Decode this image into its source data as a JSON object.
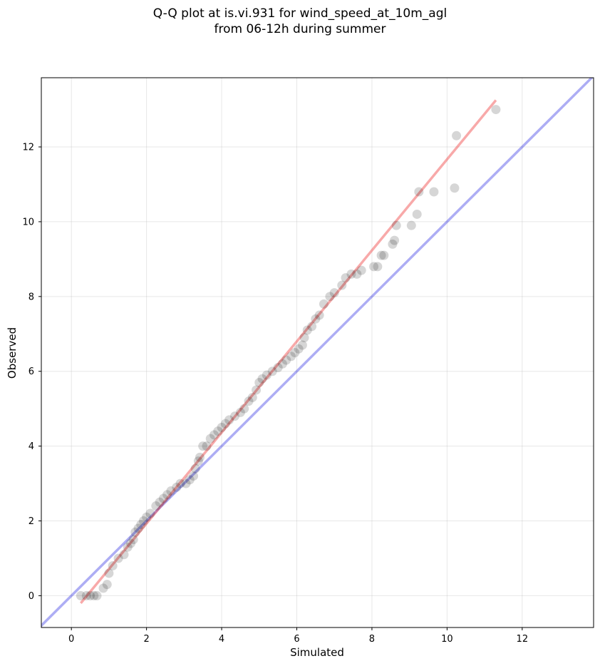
{
  "chart_data": {
    "type": "scatter",
    "title": "Q-Q plot at is.vi.931 for wind_speed_at_10m_agl",
    "subtitle": "from 06-12h during summer",
    "xlabel": "Simulated",
    "ylabel": "Observed",
    "xlim": [
      -0.8,
      13.9
    ],
    "ylim": [
      -0.85,
      13.85
    ],
    "xticks": [
      "0",
      "2",
      "4",
      "6",
      "8",
      "10",
      "12"
    ],
    "yticks": [
      "0",
      "2",
      "4",
      "6",
      "8",
      "10",
      "12"
    ],
    "grid": true,
    "reference_line": {
      "slope": 1,
      "intercept": 0,
      "color": "#0000dd"
    },
    "fit_line": {
      "x": [
        0.25,
        11.3
      ],
      "y": [
        -0.2,
        13.25
      ],
      "color": "#ee3333"
    },
    "point_color": "#000000",
    "points": [
      {
        "x": 0.25,
        "y": 0.0
      },
      {
        "x": 0.4,
        "y": 0.0
      },
      {
        "x": 0.5,
        "y": 0.0
      },
      {
        "x": 0.6,
        "y": 0.0
      },
      {
        "x": 0.68,
        "y": 0.0
      },
      {
        "x": 0.85,
        "y": 0.2
      },
      {
        "x": 0.95,
        "y": 0.3
      },
      {
        "x": 1.0,
        "y": 0.6
      },
      {
        "x": 1.1,
        "y": 0.8
      },
      {
        "x": 1.25,
        "y": 1.0
      },
      {
        "x": 1.4,
        "y": 1.1
      },
      {
        "x": 1.5,
        "y": 1.3
      },
      {
        "x": 1.58,
        "y": 1.4
      },
      {
        "x": 1.65,
        "y": 1.5
      },
      {
        "x": 1.7,
        "y": 1.7
      },
      {
        "x": 1.78,
        "y": 1.8
      },
      {
        "x": 1.85,
        "y": 1.9
      },
      {
        "x": 1.92,
        "y": 2.0
      },
      {
        "x": 2.0,
        "y": 2.1
      },
      {
        "x": 2.1,
        "y": 2.2
      },
      {
        "x": 2.25,
        "y": 2.4
      },
      {
        "x": 2.35,
        "y": 2.5
      },
      {
        "x": 2.45,
        "y": 2.6
      },
      {
        "x": 2.55,
        "y": 2.7
      },
      {
        "x": 2.65,
        "y": 2.8
      },
      {
        "x": 2.8,
        "y": 2.9
      },
      {
        "x": 2.9,
        "y": 3.0
      },
      {
        "x": 3.05,
        "y": 3.0
      },
      {
        "x": 3.15,
        "y": 3.1
      },
      {
        "x": 3.25,
        "y": 3.2
      },
      {
        "x": 3.3,
        "y": 3.4
      },
      {
        "x": 3.38,
        "y": 3.6
      },
      {
        "x": 3.42,
        "y": 3.7
      },
      {
        "x": 3.5,
        "y": 4.0
      },
      {
        "x": 3.6,
        "y": 4.0
      },
      {
        "x": 3.7,
        "y": 4.2
      },
      {
        "x": 3.8,
        "y": 4.3
      },
      {
        "x": 3.9,
        "y": 4.4
      },
      {
        "x": 4.0,
        "y": 4.5
      },
      {
        "x": 4.1,
        "y": 4.6
      },
      {
        "x": 4.2,
        "y": 4.7
      },
      {
        "x": 4.35,
        "y": 4.8
      },
      {
        "x": 4.5,
        "y": 4.9
      },
      {
        "x": 4.6,
        "y": 5.0
      },
      {
        "x": 4.72,
        "y": 5.2
      },
      {
        "x": 4.82,
        "y": 5.3
      },
      {
        "x": 4.92,
        "y": 5.5
      },
      {
        "x": 5.0,
        "y": 5.7
      },
      {
        "x": 5.08,
        "y": 5.8
      },
      {
        "x": 5.2,
        "y": 5.9
      },
      {
        "x": 5.35,
        "y": 6.0
      },
      {
        "x": 5.5,
        "y": 6.1
      },
      {
        "x": 5.62,
        "y": 6.2
      },
      {
        "x": 5.72,
        "y": 6.3
      },
      {
        "x": 5.85,
        "y": 6.4
      },
      {
        "x": 5.95,
        "y": 6.5
      },
      {
        "x": 6.05,
        "y": 6.6
      },
      {
        "x": 6.15,
        "y": 6.7
      },
      {
        "x": 6.2,
        "y": 6.9
      },
      {
        "x": 6.28,
        "y": 7.1
      },
      {
        "x": 6.4,
        "y": 7.2
      },
      {
        "x": 6.5,
        "y": 7.4
      },
      {
        "x": 6.6,
        "y": 7.5
      },
      {
        "x": 6.72,
        "y": 7.8
      },
      {
        "x": 6.88,
        "y": 8.0
      },
      {
        "x": 7.0,
        "y": 8.1
      },
      {
        "x": 7.2,
        "y": 8.3
      },
      {
        "x": 7.3,
        "y": 8.5
      },
      {
        "x": 7.45,
        "y": 8.6
      },
      {
        "x": 7.6,
        "y": 8.6
      },
      {
        "x": 7.72,
        "y": 8.7
      },
      {
        "x": 8.05,
        "y": 8.8
      },
      {
        "x": 8.15,
        "y": 8.8
      },
      {
        "x": 8.25,
        "y": 9.1
      },
      {
        "x": 8.32,
        "y": 9.1
      },
      {
        "x": 8.55,
        "y": 9.4
      },
      {
        "x": 8.6,
        "y": 9.5
      },
      {
        "x": 8.65,
        "y": 9.9
      },
      {
        "x": 9.05,
        "y": 9.9
      },
      {
        "x": 9.2,
        "y": 10.2
      },
      {
        "x": 9.25,
        "y": 10.8
      },
      {
        "x": 9.65,
        "y": 10.8
      },
      {
        "x": 10.2,
        "y": 10.9
      },
      {
        "x": 10.25,
        "y": 12.3
      },
      {
        "x": 11.3,
        "y": 13.0
      }
    ]
  }
}
